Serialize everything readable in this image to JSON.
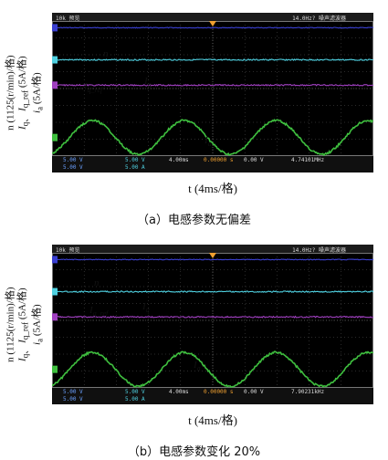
{
  "panels": [
    {
      "id": "a",
      "scope_header": {
        "left": "10k 预览",
        "right": "14.0Hz? 噪声滤波器"
      },
      "readouts": {
        "time": "4.00ms",
        "offset": "0.00000 s",
        "trig": "0.00 V",
        "freq": "4.74101MHz",
        "ch1": "5.00 V",
        "ch2": "5.00 V",
        "ch3": "5.00 A",
        "ch4": "5.00 V"
      },
      "annotations": {
        "n": "n",
        "iq_ref": "I",
        "iq_ref_sub": "q_ref",
        "iq": "I",
        "iq_sub": "q",
        "ia": "I",
        "ia_sub": "a"
      },
      "ylabel": {
        "line1": "n (1125(r/min)/格)",
        "line2": "I",
        "line2_sub": "q、",
        "line2b": "I",
        "line2b_sub": "q_ref",
        "line2c": " (5A/格)",
        "line3": "i",
        "line3_sub": "a",
        "line3b": " (5A/格)"
      },
      "xlabel": "t (4ms/格)",
      "caption": "（a）电感参数无偏差"
    },
    {
      "id": "b",
      "scope_header": {
        "left": "10k 预览",
        "right": "14.0Hz? 噪声滤波器"
      },
      "readouts": {
        "time": "4.00ms",
        "offset": "0.00000 s",
        "trig": "0.00 V",
        "freq": "7.90231kHz",
        "ch1": "5.00 V",
        "ch2": "5.00 V",
        "ch3": "5.00 A",
        "ch4": "5.00 V"
      },
      "annotations": {
        "n": "n",
        "iq_ref": "I",
        "iq_ref_sub": "q_ref",
        "iq": "I",
        "iq_sub": "q",
        "ia": "I",
        "ia_sub": "a"
      },
      "ylabel": {
        "line1": "n (1125(r/min)/格)",
        "line2": "I",
        "line2_sub": "q、",
        "line2b": "I",
        "line2b_sub": "q_ref",
        "line2c": " (5A/格)",
        "line3": "i",
        "line3_sub": "a",
        "line3b": " (5A/格)"
      },
      "xlabel": "t (4ms/格)",
      "caption": "（b）电感参数变化 20%"
    }
  ],
  "chart_data": [
    {
      "type": "line",
      "xlabel": "t (4ms/格)",
      "ylabel": "n (1125(r/min)/格)  Iq、Iq_ref (5A/格)  ia (5A/格)",
      "x_divisions": 10,
      "y_divisions": 8,
      "grid": true,
      "series": [
        {
          "name": "n",
          "color": "#3a3fd0",
          "level_div": 3.6
        },
        {
          "name": "Iq_ref",
          "color": "#4fd0e0",
          "level_div": 1.7
        },
        {
          "name": "Iq",
          "color": "#a040c0",
          "level_div": 0.2
        },
        {
          "name": "Ia",
          "color": "#3fbf3f",
          "amplitude_div": 1.0,
          "cycles": 3.5
        }
      ]
    },
    {
      "type": "line",
      "xlabel": "t (4ms/格)",
      "ylabel": "n (1125(r/min)/格)  Iq、Iq_ref (5A/格)  ia (5A/格)",
      "x_divisions": 10,
      "y_divisions": 8,
      "grid": true,
      "series": [
        {
          "name": "n",
          "color": "#3a3fd0",
          "level_div": 3.6
        },
        {
          "name": "Iq_ref",
          "color": "#4fd0e0",
          "level_div": 1.7
        },
        {
          "name": "Iq",
          "color": "#a040c0",
          "level_div": 0.2
        },
        {
          "name": "Ia",
          "color": "#3fbf3f",
          "amplitude_div": 1.0,
          "cycles": 3.5
        }
      ]
    }
  ]
}
